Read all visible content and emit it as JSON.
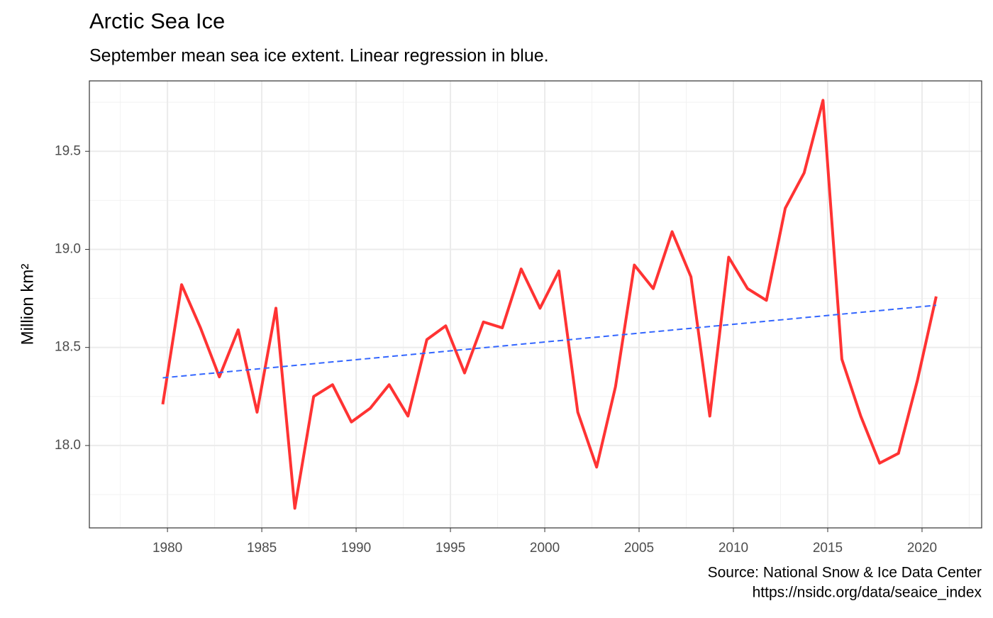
{
  "chart_data": {
    "type": "line",
    "title": "Arctic Sea Ice",
    "subtitle": "September mean sea ice extent. Linear regression in blue.",
    "ylabel": "Million km²",
    "caption": [
      "Source: National Snow & Ice Data Center",
      "https://nsidc.org/data/seaice_index"
    ],
    "x": [
      1979.75,
      1980.75,
      1981.75,
      1982.75,
      1983.75,
      1984.75,
      1985.75,
      1986.75,
      1987.75,
      1988.75,
      1989.75,
      1990.75,
      1991.75,
      1992.75,
      1993.75,
      1994.75,
      1995.75,
      1996.75,
      1997.75,
      1998.75,
      1999.75,
      2000.75,
      2001.75,
      2002.75,
      2003.75,
      2004.75,
      2005.75,
      2006.75,
      2007.75,
      2008.75,
      2009.75,
      2010.75,
      2011.75,
      2012.75,
      2013.75,
      2014.75,
      2015.75,
      2016.75,
      2017.75,
      2018.75,
      2019.75,
      2020.75
    ],
    "series": [
      {
        "color": "#ff3333",
        "values": [
          18.21,
          18.82,
          18.6,
          18.35,
          18.59,
          18.17,
          18.7,
          17.68,
          18.25,
          18.31,
          18.12,
          18.19,
          18.31,
          18.15,
          18.54,
          18.61,
          18.37,
          18.63,
          18.6,
          18.9,
          18.7,
          18.89,
          18.17,
          17.89,
          18.3,
          18.92,
          18.8,
          19.09,
          18.86,
          18.15,
          18.96,
          18.8,
          18.74,
          19.21,
          19.39,
          19.76,
          18.44,
          18.15,
          17.91,
          17.96,
          18.33,
          18.76
        ]
      }
    ],
    "trend": {
      "x": [
        1979.75,
        2020.75
      ],
      "values": [
        18.345,
        18.715
      ],
      "color": "#3366ff",
      "dashed": true
    },
    "xlim": [
      1975.86,
      2023.16
    ],
    "xticks": [
      1980,
      1985,
      1990,
      1995,
      2000,
      2005,
      2010,
      2015,
      2020
    ],
    "ylim": [
      17.58,
      19.859
    ],
    "yticks": [
      {
        "value": 18,
        "label": "18.0"
      },
      18.5,
      {
        "value": 19,
        "label": "19.0"
      },
      19.5
    ],
    "grid": true
  }
}
